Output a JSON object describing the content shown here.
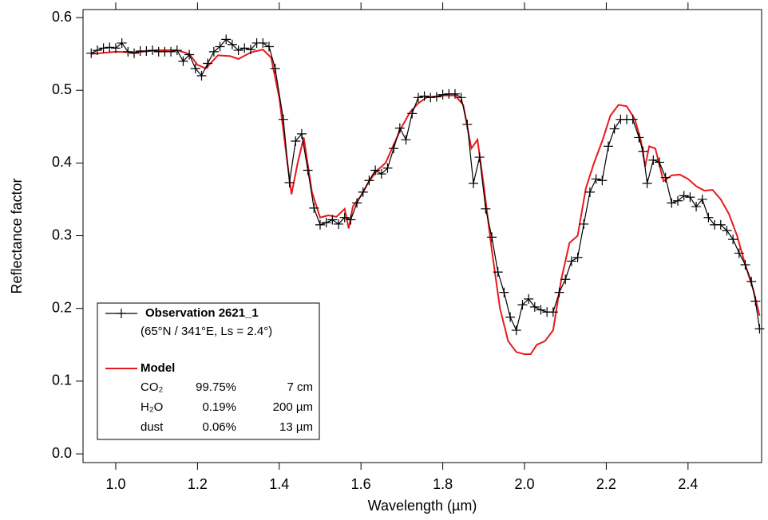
{
  "chart_data": {
    "type": "line",
    "xlabel": "Wavelength (µm)",
    "ylabel": "Reflectance factor",
    "xlim": [
      0.92,
      2.58
    ],
    "ylim": [
      -0.012,
      0.611
    ],
    "xticks": [
      {
        "value": 1,
        "label": "1.0"
      },
      1.2,
      1.4,
      1.6,
      1.8,
      {
        "value": 2,
        "label": "2.0"
      },
      2.2,
      2.4
    ],
    "yticks": [
      {
        "value": 0,
        "label": "0.0"
      },
      0.1,
      0.2,
      0.3,
      0.4,
      0.5,
      0.6
    ],
    "grid": false,
    "series": [
      {
        "name": "Observation 2621_1",
        "subtitle": "(65°N / 341°E, Ls = 2.4°)",
        "color": "#000000",
        "marker": "+",
        "x": [
          0.94,
          0.955,
          0.97,
          0.985,
          1.0,
          1.015,
          1.03,
          1.045,
          1.06,
          1.075,
          1.09,
          1.105,
          1.12,
          1.135,
          1.15,
          1.165,
          1.18,
          1.195,
          1.21,
          1.225,
          1.24,
          1.255,
          1.27,
          1.285,
          1.3,
          1.315,
          1.33,
          1.345,
          1.36,
          1.375,
          1.39,
          1.41,
          1.425,
          1.44,
          1.455,
          1.47,
          1.485,
          1.5,
          1.515,
          1.53,
          1.545,
          1.56,
          1.575,
          1.59,
          1.605,
          1.62,
          1.635,
          1.65,
          1.665,
          1.68,
          1.695,
          1.71,
          1.725,
          1.74,
          1.755,
          1.77,
          1.785,
          1.8,
          1.815,
          1.83,
          1.845,
          1.86,
          1.875,
          1.89,
          1.905,
          1.92,
          1.935,
          1.95,
          1.965,
          1.98,
          1.995,
          2.01,
          2.025,
          2.04,
          2.055,
          2.07,
          2.085,
          2.1,
          2.115,
          2.13,
          2.145,
          2.16,
          2.175,
          2.19,
          2.205,
          2.22,
          2.235,
          2.25,
          2.265,
          2.28,
          2.29,
          2.3,
          2.315,
          2.33,
          2.345,
          2.36,
          2.375,
          2.39,
          2.405,
          2.42,
          2.435,
          2.45,
          2.465,
          2.48,
          2.495,
          2.51,
          2.525,
          2.54,
          2.555,
          2.565,
          2.575
        ],
        "values": [
          0.551,
          0.555,
          0.558,
          0.559,
          0.558,
          0.565,
          0.553,
          0.551,
          0.554,
          0.554,
          0.555,
          0.553,
          0.553,
          0.553,
          0.555,
          0.54,
          0.549,
          0.53,
          0.52,
          0.537,
          0.553,
          0.56,
          0.57,
          0.563,
          0.555,
          0.558,
          0.556,
          0.565,
          0.565,
          0.56,
          0.53,
          0.46,
          0.373,
          0.43,
          0.44,
          0.39,
          0.338,
          0.315,
          0.318,
          0.322,
          0.316,
          0.325,
          0.322,
          0.345,
          0.36,
          0.376,
          0.39,
          0.385,
          0.393,
          0.42,
          0.448,
          0.432,
          0.468,
          0.49,
          0.492,
          0.49,
          0.491,
          0.494,
          0.495,
          0.495,
          0.49,
          0.453,
          0.372,
          0.408,
          0.337,
          0.298,
          0.25,
          0.222,
          0.188,
          0.17,
          0.205,
          0.213,
          0.202,
          0.198,
          0.195,
          0.195,
          0.222,
          0.24,
          0.265,
          0.27,
          0.316,
          0.36,
          0.378,
          0.376,
          0.423,
          0.447,
          0.46,
          0.46,
          0.46,
          0.435,
          0.416,
          0.372,
          0.404,
          0.401,
          0.38,
          0.345,
          0.348,
          0.355,
          0.353,
          0.34,
          0.35,
          0.325,
          0.315,
          0.315,
          0.307,
          0.295,
          0.276,
          0.26,
          0.237,
          0.21,
          0.172
        ]
      },
      {
        "name": "Model",
        "color": "#e8191c",
        "x": [
          0.94,
          1.0,
          1.05,
          1.1,
          1.15,
          1.18,
          1.2,
          1.22,
          1.25,
          1.28,
          1.3,
          1.33,
          1.36,
          1.38,
          1.4,
          1.42,
          1.43,
          1.445,
          1.46,
          1.48,
          1.5,
          1.52,
          1.54,
          1.56,
          1.57,
          1.58,
          1.6,
          1.62,
          1.64,
          1.66,
          1.68,
          1.7,
          1.72,
          1.74,
          1.76,
          1.8,
          1.83,
          1.85,
          1.87,
          1.885,
          1.9,
          1.92,
          1.94,
          1.96,
          1.98,
          2.0,
          2.015,
          2.03,
          2.05,
          2.07,
          2.09,
          2.11,
          2.13,
          2.15,
          2.17,
          2.19,
          2.21,
          2.23,
          2.25,
          2.27,
          2.285,
          2.295,
          2.305,
          2.32,
          2.34,
          2.36,
          2.38,
          2.4,
          2.42,
          2.44,
          2.46,
          2.48,
          2.5,
          2.52,
          2.54,
          2.56,
          2.575
        ],
        "values": [
          0.55,
          0.553,
          0.552,
          0.555,
          0.555,
          0.55,
          0.535,
          0.53,
          0.548,
          0.547,
          0.543,
          0.552,
          0.556,
          0.545,
          0.49,
          0.4,
          0.357,
          0.4,
          0.435,
          0.36,
          0.325,
          0.328,
          0.326,
          0.337,
          0.31,
          0.34,
          0.355,
          0.375,
          0.39,
          0.4,
          0.425,
          0.45,
          0.47,
          0.482,
          0.49,
          0.493,
          0.493,
          0.48,
          0.42,
          0.432,
          0.37,
          0.28,
          0.2,
          0.155,
          0.14,
          0.137,
          0.137,
          0.15,
          0.155,
          0.17,
          0.24,
          0.29,
          0.3,
          0.365,
          0.4,
          0.43,
          0.465,
          0.48,
          0.478,
          0.46,
          0.43,
          0.395,
          0.423,
          0.42,
          0.375,
          0.383,
          0.384,
          0.378,
          0.368,
          0.362,
          0.363,
          0.35,
          0.33,
          0.3,
          0.26,
          0.225,
          0.19
        ],
        "composition": [
          [
            "CO₂",
            "99.75%",
            "7 cm"
          ],
          [
            "H₂O",
            "0.19%",
            "200 µm"
          ],
          [
            "dust",
            "0.06%",
            "13 µm"
          ]
        ]
      }
    ]
  }
}
